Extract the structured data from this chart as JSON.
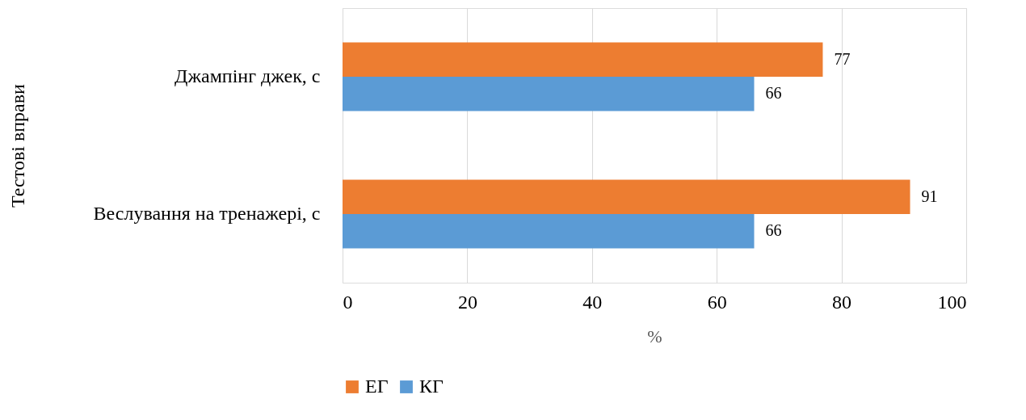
{
  "chart_data": {
    "type": "bar",
    "orientation": "horizontal",
    "categories": [
      "Джампінг джек, с",
      "Веслування на тренажері, с"
    ],
    "series": [
      {
        "name": "ЕГ",
        "color": "#ed7d31",
        "values": [
          77,
          91
        ]
      },
      {
        "name": "КГ",
        "color": "#5b9bd5",
        "values": [
          66,
          66
        ]
      }
    ],
    "xlim": [
      0,
      100
    ],
    "xticks": [
      0,
      20,
      40,
      60,
      80,
      100
    ],
    "xlabel": "%",
    "ylabel": "Тестові вправи",
    "grid": "x",
    "legend": "bottom",
    "data_labels": true
  }
}
